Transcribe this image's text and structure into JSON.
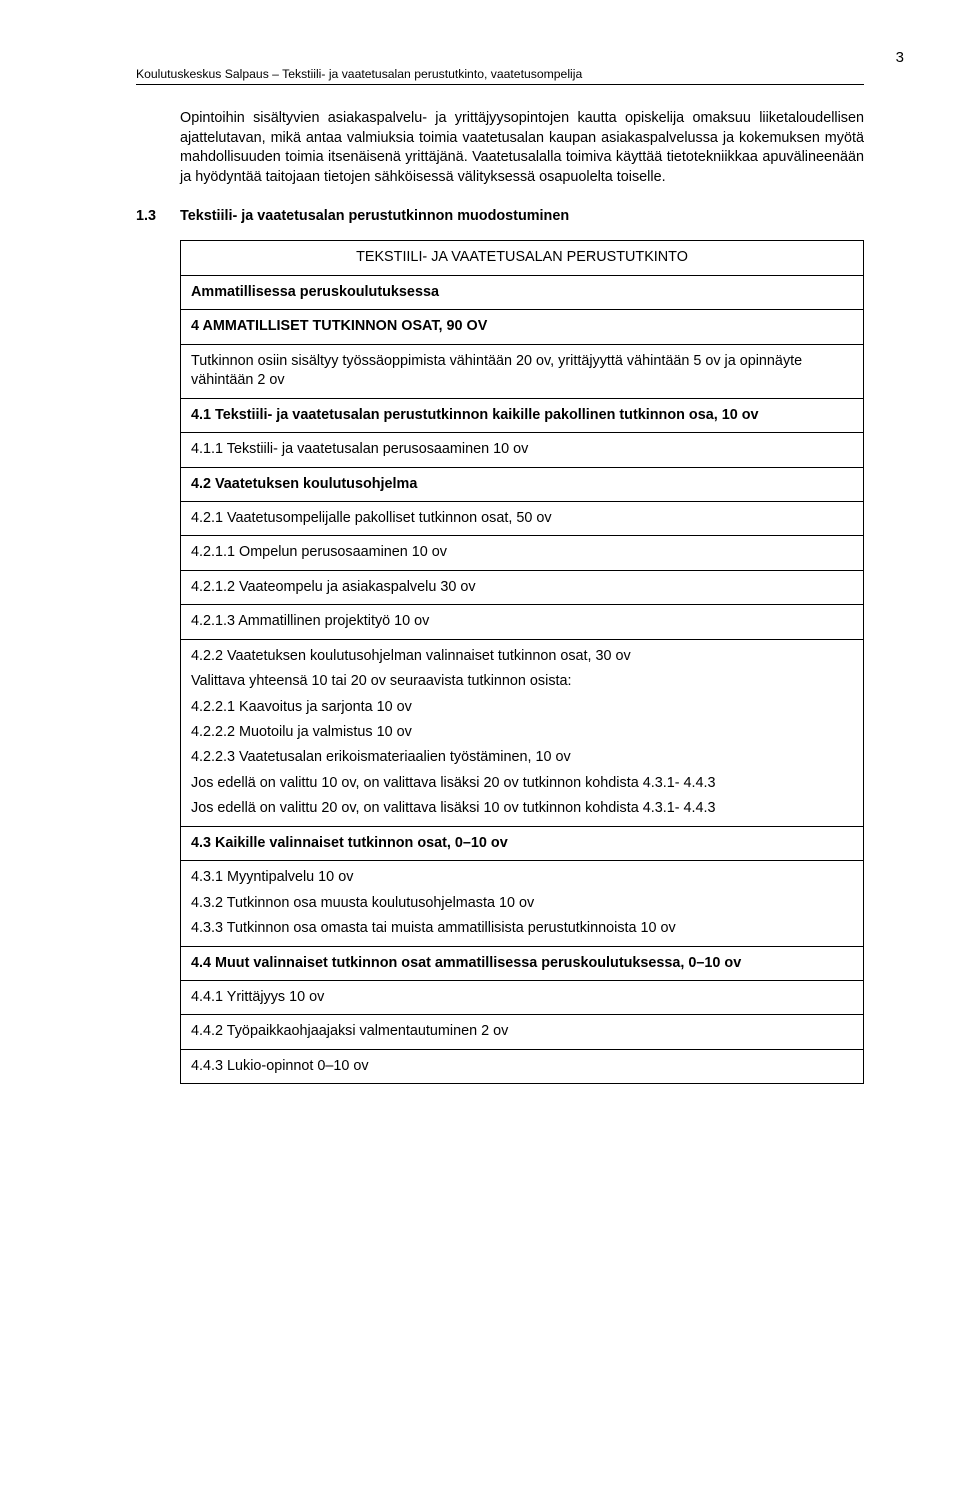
{
  "colors": {
    "text": "#000000",
    "background": "#ffffff",
    "border": "#000000"
  },
  "typography": {
    "body_font": "Arial",
    "body_size_pt": 11,
    "header_size_pt": 9
  },
  "page_number": "3",
  "header": "Koulutuskeskus Salpaus – Tekstiili- ja vaatetusalan perustutkinto, vaatetusompelija",
  "intro": "Opintoihin sisältyvien asiakaspalvelu- ja yrittäjyysopintojen kautta opiskelija omaksuu liiketaloudellisen ajattelutavan, mikä antaa valmiuksia toimia vaatetusalan kaupan asiakaspalvelussa ja kokemuksen myötä mahdollisuuden toimia itsenäisenä yrittäjänä. Vaatetusalalla toimiva käyttää tietotekniikkaa apuvälineenään ja hyödyntää taitojaan tietojen sähköisessä välityksessä osapuolelta toiselle.",
  "section": {
    "num": "1.3",
    "title": "Tekstiili- ja vaatetusalan perustutkinnon muodostuminen"
  },
  "rows": {
    "r0": "TEKSTIILI- JA VAATETUSALAN PERUSTUTKINTO",
    "r1": "Ammatillisessa peruskoulutuksessa",
    "r2": "4 AMMATILLISET TUTKINNON OSAT, 90 OV",
    "r3": "Tutkinnon osiin sisältyy työssäoppimista vähintään 20 ov, yrittäjyyttä vähintään 5 ov ja opinnäyte vähintään 2 ov",
    "r4": "4.1 Tekstiili- ja vaatetusalan perustutkinnon kaikille pakollinen tutkinnon osa, 10 ov",
    "r5": "4.1.1 Tekstiili- ja vaatetusalan perusosaaminen 10 ov",
    "r6": "4.2 Vaatetuksen koulutusohjelma",
    "r7": "4.2.1 Vaatetusompelijalle pakolliset tutkinnon osat, 50 ov",
    "r8": "4.2.1.1 Ompelun perusosaaminen 10 ov",
    "r9": "4.2.1.2 Vaateompelu ja asiakaspalvelu 30 ov",
    "r10": "4.2.1.3 Ammatillinen projektityö 10 ov",
    "r11a": "4.2.2 Vaatetuksen koulutusohjelman valinnaiset tutkinnon osat, 30 ov",
    "r11b": "Valittava yhteensä 10 tai 20 ov seuraavista tutkinnon osista:",
    "r11c": "4.2.2.1 Kaavoitus ja sarjonta 10 ov",
    "r11d": "4.2.2.2 Muotoilu ja valmistus 10 ov",
    "r11e": "4.2.2.3 Vaatetusalan erikoismateriaalien työstäminen, 10 ov",
    "r11f": "Jos edellä on valittu 10 ov, on valittava lisäksi 20 ov tutkinnon kohdista 4.3.1- 4.4.3",
    "r11g": "Jos edellä on valittu 20 ov, on valittava lisäksi 10 ov tutkinnon kohdista 4.3.1- 4.4.3",
    "r12": "4.3 Kaikille valinnaiset tutkinnon osat, 0–10 ov",
    "r13a": "4.3.1 Myyntipalvelu 10 ov",
    "r13b": "4.3.2 Tutkinnon osa muusta koulutusohjelmasta 10 ov",
    "r13c": "4.3.3 Tutkinnon osa omasta tai muista ammatillisista perustutkinnoista 10 ov",
    "r14": "4.4 Muut valinnaiset tutkinnon osat ammatillisessa peruskoulutuksessa, 0–10 ov",
    "r15": "4.4.1 Yrittäjyys 10 ov",
    "r16": "4.4.2 Työpaikkaohjaajaksi valmentautuminen 2 ov",
    "r17": "4.4.3 Lukio-opinnot 0–10 ov"
  }
}
